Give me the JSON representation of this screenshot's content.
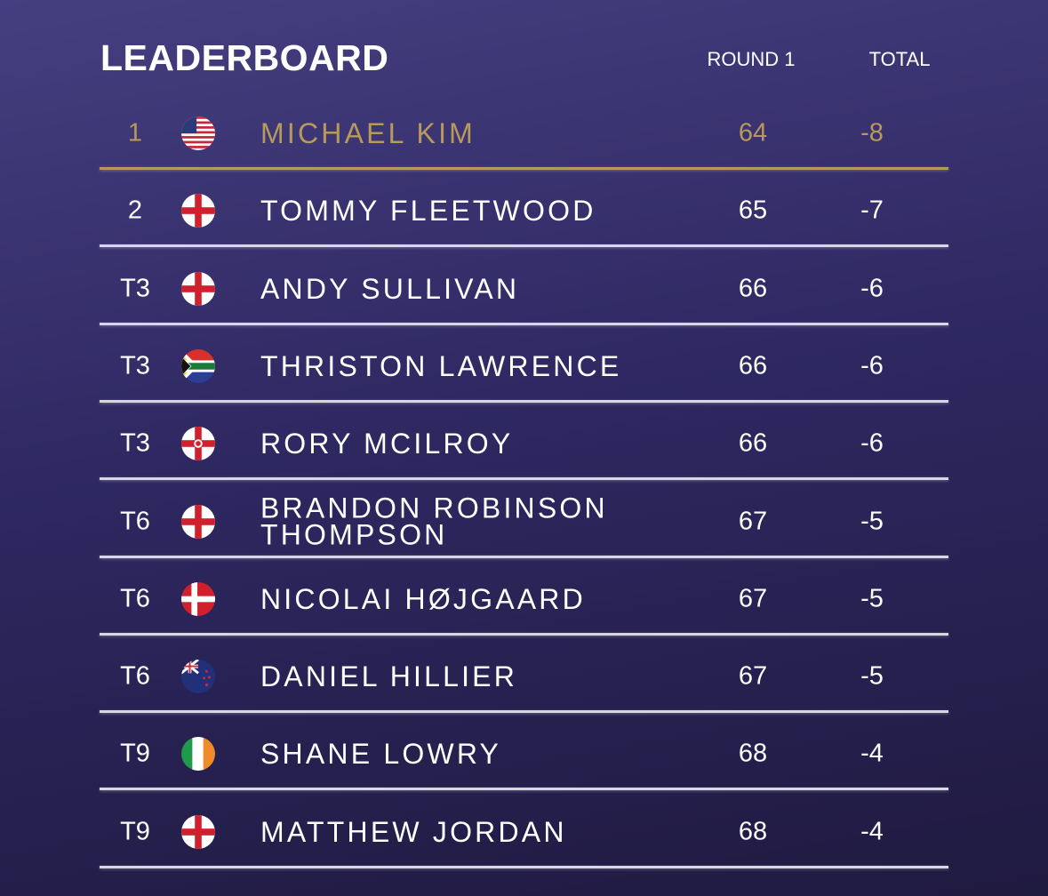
{
  "header": {
    "title": "LEADERBOARD",
    "columns": [
      "ROUND 1",
      "TOTAL"
    ]
  },
  "table": {
    "rows": [
      {
        "position": "1",
        "name": "MICHAEL KIM",
        "round1": 64,
        "total": -8
      },
      {
        "position": "2",
        "name": "TOMMY FLEETWOOD",
        "round1": 65,
        "total": -7
      },
      {
        "position": "T3",
        "name": "ANDY SULLIVAN",
        "round1": 66,
        "total": -6
      },
      {
        "position": "T3",
        "name": "THRISTON LAWRENCE",
        "round1": 66,
        "total": -6
      },
      {
        "position": "T3",
        "name": "RORY MCILROY",
        "round1": 66,
        "total": -6
      },
      {
        "position": "T6",
        "name": "BRANDON ROBINSON THOMPSON",
        "round1": 67,
        "total": -5
      },
      {
        "position": "T6",
        "name": "NICOLAI HØJGAARD",
        "round1": 67,
        "total": -5
      },
      {
        "position": "T6",
        "name": "DANIEL HILLIER",
        "round1": 67,
        "total": -5
      },
      {
        "position": "T9",
        "name": "SHANE LOWRY",
        "round1": 68,
        "total": -4
      },
      {
        "position": "T9",
        "name": "MATTHEW JORDAN",
        "round1": 68,
        "total": -4
      }
    ]
  }
}
